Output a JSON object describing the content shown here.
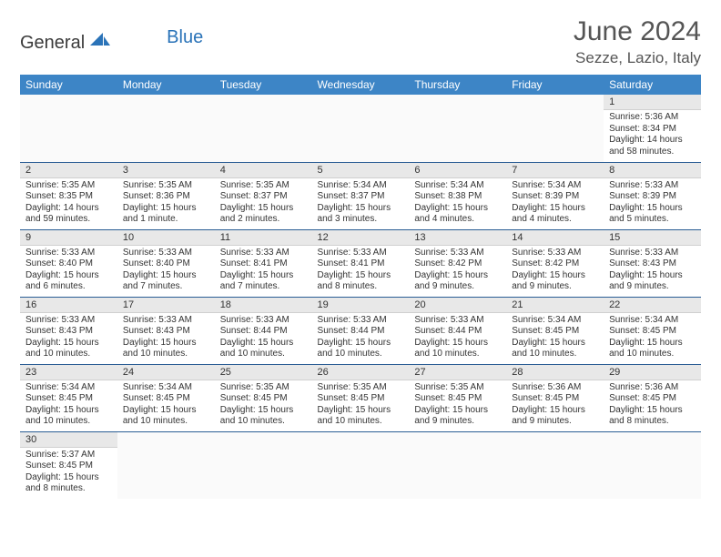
{
  "logo": {
    "part1": "General",
    "part2": "Blue"
  },
  "title": "June 2024",
  "location": "Sezze, Lazio, Italy",
  "colors": {
    "header_bg": "#3d85c6",
    "header_text": "#ffffff",
    "row_border": "#2a5d94",
    "daynum_bg": "#e8e8e8",
    "logo_blue": "#2a73b8",
    "text": "#333333"
  },
  "weekdays": [
    "Sunday",
    "Monday",
    "Tuesday",
    "Wednesday",
    "Thursday",
    "Friday",
    "Saturday"
  ],
  "grid": [
    [
      {
        "n": "",
        "sr": "",
        "ss": "",
        "dl": ""
      },
      {
        "n": "",
        "sr": "",
        "ss": "",
        "dl": ""
      },
      {
        "n": "",
        "sr": "",
        "ss": "",
        "dl": ""
      },
      {
        "n": "",
        "sr": "",
        "ss": "",
        "dl": ""
      },
      {
        "n": "",
        "sr": "",
        "ss": "",
        "dl": ""
      },
      {
        "n": "",
        "sr": "",
        "ss": "",
        "dl": ""
      },
      {
        "n": "1",
        "sr": "Sunrise: 5:36 AM",
        "ss": "Sunset: 8:34 PM",
        "dl": "Daylight: 14 hours and 58 minutes."
      }
    ],
    [
      {
        "n": "2",
        "sr": "Sunrise: 5:35 AM",
        "ss": "Sunset: 8:35 PM",
        "dl": "Daylight: 14 hours and 59 minutes."
      },
      {
        "n": "3",
        "sr": "Sunrise: 5:35 AM",
        "ss": "Sunset: 8:36 PM",
        "dl": "Daylight: 15 hours and 1 minute."
      },
      {
        "n": "4",
        "sr": "Sunrise: 5:35 AM",
        "ss": "Sunset: 8:37 PM",
        "dl": "Daylight: 15 hours and 2 minutes."
      },
      {
        "n": "5",
        "sr": "Sunrise: 5:34 AM",
        "ss": "Sunset: 8:37 PM",
        "dl": "Daylight: 15 hours and 3 minutes."
      },
      {
        "n": "6",
        "sr": "Sunrise: 5:34 AM",
        "ss": "Sunset: 8:38 PM",
        "dl": "Daylight: 15 hours and 4 minutes."
      },
      {
        "n": "7",
        "sr": "Sunrise: 5:34 AM",
        "ss": "Sunset: 8:39 PM",
        "dl": "Daylight: 15 hours and 4 minutes."
      },
      {
        "n": "8",
        "sr": "Sunrise: 5:33 AM",
        "ss": "Sunset: 8:39 PM",
        "dl": "Daylight: 15 hours and 5 minutes."
      }
    ],
    [
      {
        "n": "9",
        "sr": "Sunrise: 5:33 AM",
        "ss": "Sunset: 8:40 PM",
        "dl": "Daylight: 15 hours and 6 minutes."
      },
      {
        "n": "10",
        "sr": "Sunrise: 5:33 AM",
        "ss": "Sunset: 8:40 PM",
        "dl": "Daylight: 15 hours and 7 minutes."
      },
      {
        "n": "11",
        "sr": "Sunrise: 5:33 AM",
        "ss": "Sunset: 8:41 PM",
        "dl": "Daylight: 15 hours and 7 minutes."
      },
      {
        "n": "12",
        "sr": "Sunrise: 5:33 AM",
        "ss": "Sunset: 8:41 PM",
        "dl": "Daylight: 15 hours and 8 minutes."
      },
      {
        "n": "13",
        "sr": "Sunrise: 5:33 AM",
        "ss": "Sunset: 8:42 PM",
        "dl": "Daylight: 15 hours and 9 minutes."
      },
      {
        "n": "14",
        "sr": "Sunrise: 5:33 AM",
        "ss": "Sunset: 8:42 PM",
        "dl": "Daylight: 15 hours and 9 minutes."
      },
      {
        "n": "15",
        "sr": "Sunrise: 5:33 AM",
        "ss": "Sunset: 8:43 PM",
        "dl": "Daylight: 15 hours and 9 minutes."
      }
    ],
    [
      {
        "n": "16",
        "sr": "Sunrise: 5:33 AM",
        "ss": "Sunset: 8:43 PM",
        "dl": "Daylight: 15 hours and 10 minutes."
      },
      {
        "n": "17",
        "sr": "Sunrise: 5:33 AM",
        "ss": "Sunset: 8:43 PM",
        "dl": "Daylight: 15 hours and 10 minutes."
      },
      {
        "n": "18",
        "sr": "Sunrise: 5:33 AM",
        "ss": "Sunset: 8:44 PM",
        "dl": "Daylight: 15 hours and 10 minutes."
      },
      {
        "n": "19",
        "sr": "Sunrise: 5:33 AM",
        "ss": "Sunset: 8:44 PM",
        "dl": "Daylight: 15 hours and 10 minutes."
      },
      {
        "n": "20",
        "sr": "Sunrise: 5:33 AM",
        "ss": "Sunset: 8:44 PM",
        "dl": "Daylight: 15 hours and 10 minutes."
      },
      {
        "n": "21",
        "sr": "Sunrise: 5:34 AM",
        "ss": "Sunset: 8:45 PM",
        "dl": "Daylight: 15 hours and 10 minutes."
      },
      {
        "n": "22",
        "sr": "Sunrise: 5:34 AM",
        "ss": "Sunset: 8:45 PM",
        "dl": "Daylight: 15 hours and 10 minutes."
      }
    ],
    [
      {
        "n": "23",
        "sr": "Sunrise: 5:34 AM",
        "ss": "Sunset: 8:45 PM",
        "dl": "Daylight: 15 hours and 10 minutes."
      },
      {
        "n": "24",
        "sr": "Sunrise: 5:34 AM",
        "ss": "Sunset: 8:45 PM",
        "dl": "Daylight: 15 hours and 10 minutes."
      },
      {
        "n": "25",
        "sr": "Sunrise: 5:35 AM",
        "ss": "Sunset: 8:45 PM",
        "dl": "Daylight: 15 hours and 10 minutes."
      },
      {
        "n": "26",
        "sr": "Sunrise: 5:35 AM",
        "ss": "Sunset: 8:45 PM",
        "dl": "Daylight: 15 hours and 10 minutes."
      },
      {
        "n": "27",
        "sr": "Sunrise: 5:35 AM",
        "ss": "Sunset: 8:45 PM",
        "dl": "Daylight: 15 hours and 9 minutes."
      },
      {
        "n": "28",
        "sr": "Sunrise: 5:36 AM",
        "ss": "Sunset: 8:45 PM",
        "dl": "Daylight: 15 hours and 9 minutes."
      },
      {
        "n": "29",
        "sr": "Sunrise: 5:36 AM",
        "ss": "Sunset: 8:45 PM",
        "dl": "Daylight: 15 hours and 8 minutes."
      }
    ],
    [
      {
        "n": "30",
        "sr": "Sunrise: 5:37 AM",
        "ss": "Sunset: 8:45 PM",
        "dl": "Daylight: 15 hours and 8 minutes."
      },
      {
        "n": "",
        "sr": "",
        "ss": "",
        "dl": ""
      },
      {
        "n": "",
        "sr": "",
        "ss": "",
        "dl": ""
      },
      {
        "n": "",
        "sr": "",
        "ss": "",
        "dl": ""
      },
      {
        "n": "",
        "sr": "",
        "ss": "",
        "dl": ""
      },
      {
        "n": "",
        "sr": "",
        "ss": "",
        "dl": ""
      },
      {
        "n": "",
        "sr": "",
        "ss": "",
        "dl": ""
      }
    ]
  ]
}
